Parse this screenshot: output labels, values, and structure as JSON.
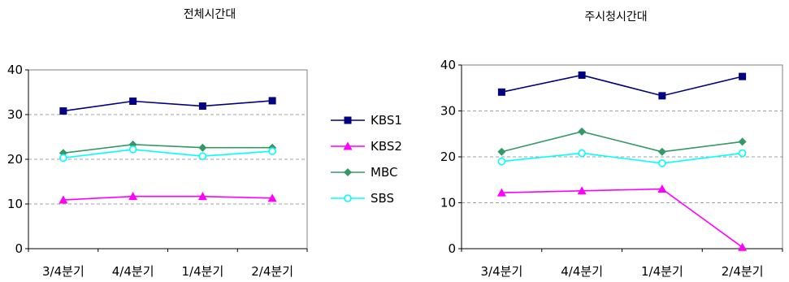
{
  "chart_data": [
    {
      "type": "line",
      "title": "전체시간대",
      "categories": [
        "3/4분기",
        "4/4분기",
        "1/4분기",
        "2/4분기"
      ],
      "ylim": [
        0,
        40
      ],
      "yticks": [
        0,
        10,
        20,
        30,
        40
      ],
      "grid": "horizontal dashed",
      "series": [
        {
          "name": "KBS1",
          "values": [
            30.8,
            33.0,
            31.9,
            33.1
          ]
        },
        {
          "name": "KBS2",
          "values": [
            10.9,
            11.7,
            11.7,
            11.3
          ]
        },
        {
          "name": "MBC",
          "values": [
            21.4,
            23.3,
            22.6,
            22.6
          ]
        },
        {
          "name": "SBS",
          "values": [
            20.3,
            22.2,
            20.7,
            21.8
          ]
        }
      ]
    },
    {
      "type": "line",
      "title": "주시청시간대",
      "categories": [
        "3/4분기",
        "4/4분기",
        "1/4분기",
        "2/4분기"
      ],
      "ylim": [
        0,
        40
      ],
      "yticks": [
        0,
        10,
        20,
        30,
        40
      ],
      "grid": "horizontal dashed",
      "series": [
        {
          "name": "KBS1",
          "values": [
            34.1,
            37.8,
            33.3,
            37.5
          ]
        },
        {
          "name": "KBS2",
          "values": [
            12.2,
            12.6,
            13.0,
            0.3
          ]
        },
        {
          "name": "MBC",
          "values": [
            21.1,
            25.5,
            21.1,
            23.3
          ]
        },
        {
          "name": "SBS",
          "values": [
            19.0,
            20.8,
            18.6,
            20.8
          ]
        }
      ]
    }
  ],
  "legend": {
    "placement": "between charts",
    "items": [
      {
        "label": "KBS1",
        "color": "#000080",
        "marker": "square"
      },
      {
        "label": "KBS2",
        "color": "#FF00FF",
        "marker": "triangle"
      },
      {
        "label": "MBC",
        "color": "#339966",
        "marker": "diamond"
      },
      {
        "label": "SBS",
        "color": "#00FFFF",
        "marker": "open-circle"
      }
    ]
  }
}
